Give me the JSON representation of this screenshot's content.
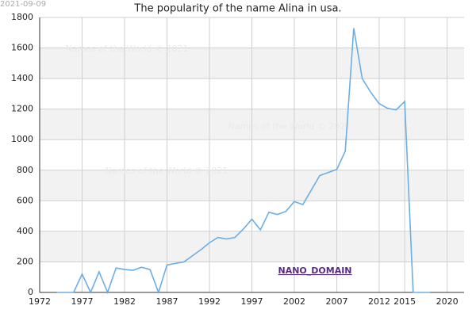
{
  "chart_data": {
    "type": "line",
    "title": "The popularity of the name Alina in usa.",
    "date_stamp": "2021-09-09",
    "watermarks": [
      "Names of the World © 2021",
      "Names of the World © 2021",
      "Names of the World © 2021"
    ],
    "domain_label": "NANO_DOMAIN",
    "x": [
      1974,
      1975,
      1976,
      1977,
      1978,
      1979,
      1980,
      1981,
      1982,
      1983,
      1984,
      1985,
      1986,
      1987,
      1988,
      1989,
      1990,
      1991,
      1992,
      1993,
      1994,
      1995,
      1996,
      1997,
      1998,
      1999,
      2000,
      2001,
      2002,
      2003,
      2004,
      2005,
      2006,
      2007,
      2008,
      2009,
      2010,
      2011,
      2012,
      2013,
      2014,
      2015,
      2016,
      2017,
      2018
    ],
    "series": [
      {
        "name": "Alina",
        "color": "#6aaee8",
        "values": [
          0,
          0,
          0,
          120,
          0,
          135,
          0,
          160,
          150,
          145,
          165,
          150,
          0,
          180,
          190,
          200,
          240,
          280,
          325,
          360,
          350,
          360,
          415,
          480,
          410,
          525,
          510,
          530,
          595,
          575,
          670,
          765,
          785,
          805,
          925,
          1730,
          1400,
          1310,
          1235,
          1205,
          1195,
          1250,
          0,
          0,
          0
        ]
      }
    ],
    "xlim": [
      1972,
      2022
    ],
    "xticks": [
      1972,
      1977,
      1982,
      1987,
      1992,
      1997,
      2002,
      2007,
      2012,
      2015,
      2020
    ],
    "ylim": [
      0,
      1800
    ],
    "yticks": [
      0,
      200,
      400,
      600,
      800,
      1000,
      1200,
      1400,
      1600,
      1800
    ],
    "grid": true,
    "band_color": "#f2f2f2"
  }
}
